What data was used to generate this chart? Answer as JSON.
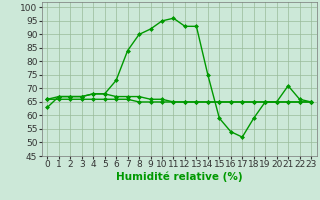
{
  "line1_x": [
    0,
    1,
    2,
    3,
    4,
    5,
    6,
    7,
    8,
    9,
    10,
    11,
    12,
    13,
    14,
    15,
    16,
    17,
    18,
    19,
    20,
    21,
    22,
    23
  ],
  "line1_y": [
    63,
    67,
    67,
    67,
    68,
    68,
    73,
    84,
    90,
    92,
    95,
    96,
    93,
    93,
    75,
    59,
    54,
    52,
    59,
    65,
    65,
    71,
    66,
    65
  ],
  "line2_x": [
    0,
    1,
    2,
    3,
    4,
    5,
    6,
    7,
    8,
    9,
    10,
    11,
    12,
    13,
    14,
    15,
    16,
    17,
    18,
    19,
    20,
    21,
    22,
    23
  ],
  "line2_y": [
    66,
    67,
    67,
    67,
    68,
    68,
    67,
    67,
    67,
    66,
    66,
    65,
    65,
    65,
    65,
    65,
    65,
    65,
    65,
    65,
    65,
    65,
    65,
    65
  ],
  "line3_x": [
    0,
    1,
    2,
    3,
    4,
    5,
    6,
    7,
    8,
    9,
    10,
    11,
    12,
    13,
    14,
    15,
    16,
    17,
    18,
    19,
    20,
    21,
    22,
    23
  ],
  "line3_y": [
    66,
    66,
    66,
    66,
    66,
    66,
    66,
    66,
    65,
    65,
    65,
    65,
    65,
    65,
    65,
    65,
    65,
    65,
    65,
    65,
    65,
    65,
    65,
    65
  ],
  "line_color": "#009900",
  "marker": "D",
  "marker_size": 2,
  "bg_color": "#cce8d8",
  "grid_color": "#99bb99",
  "xlabel": "Humidité relative (%)",
  "xlim": [
    -0.5,
    23.5
  ],
  "ylim": [
    45,
    102
  ],
  "yticks": [
    45,
    50,
    55,
    60,
    65,
    70,
    75,
    80,
    85,
    90,
    95,
    100
  ],
  "xticks": [
    0,
    1,
    2,
    3,
    4,
    5,
    6,
    7,
    8,
    9,
    10,
    11,
    12,
    13,
    14,
    15,
    16,
    17,
    18,
    19,
    20,
    21,
    22,
    23
  ],
  "xlabel_fontsize": 7.5,
  "tick_fontsize": 6.5,
  "line_width": 1.0
}
